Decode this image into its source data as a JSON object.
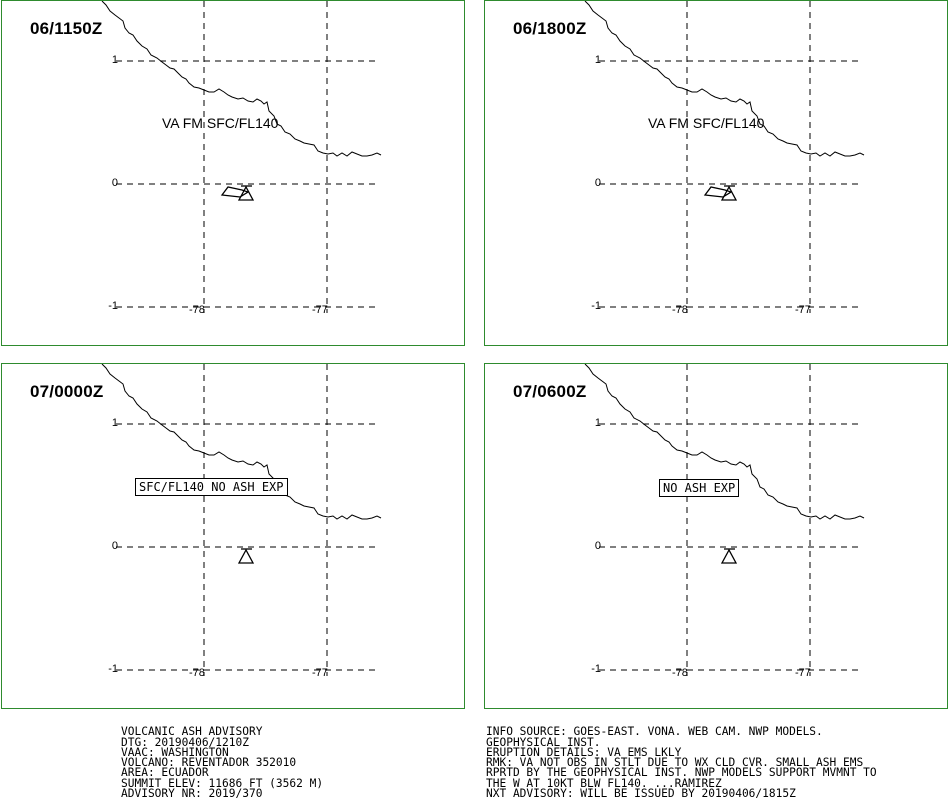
{
  "panels": [
    {
      "time": "06/1150Z",
      "ash_label": "VA FM SFC/FL140",
      "ash_box": ""
    },
    {
      "time": "06/1800Z",
      "ash_label": "VA FM SFC/FL140",
      "ash_box": ""
    },
    {
      "time": "07/0000Z",
      "ash_label": "",
      "ash_box": "SFC/FL140 NO ASH EXP"
    },
    {
      "time": "07/0600Z",
      "ash_label": "",
      "ash_box": "NO ASH EXP"
    }
  ],
  "axes": {
    "lat_labels": [
      "1",
      "0",
      "-1"
    ],
    "lon_labels": [
      "-78",
      "-77"
    ]
  },
  "advisory": {
    "left": [
      "VOLCANIC ASH ADVISORY",
      "DTG: 20190406/1210Z",
      "VAAC: WASHINGTON",
      "VOLCANO: REVENTADOR 352010",
      "AREA: ECUADOR",
      "SUMMIT ELEV: 11686 FT (3562 M)",
      "ADVISORY NR: 2019/370"
    ],
    "right": [
      "INFO SOURCE: GOES-EAST. VONA. WEB CAM. NWP MODELS.",
      "GEOPHYSICAL INST.",
      "ERUPTION DETAILS: VA EMS LKLY",
      "RMK: VA NOT OBS IN STLT DUE TO WX CLD CVR. SMALL ASH EMS",
      "RPRTD BY THE GEOPHYSICAL INST. NWP MODELS SUPPORT MVMNT TO",
      "THE W AT 10KT BLW FL140. ...RAMIREZ",
      "NXT ADVISORY: WILL BE ISSUED BY 20190406/1815Z"
    ]
  },
  "colors": {
    "panel_border": "#2e8b2e",
    "lines": "#000000"
  }
}
